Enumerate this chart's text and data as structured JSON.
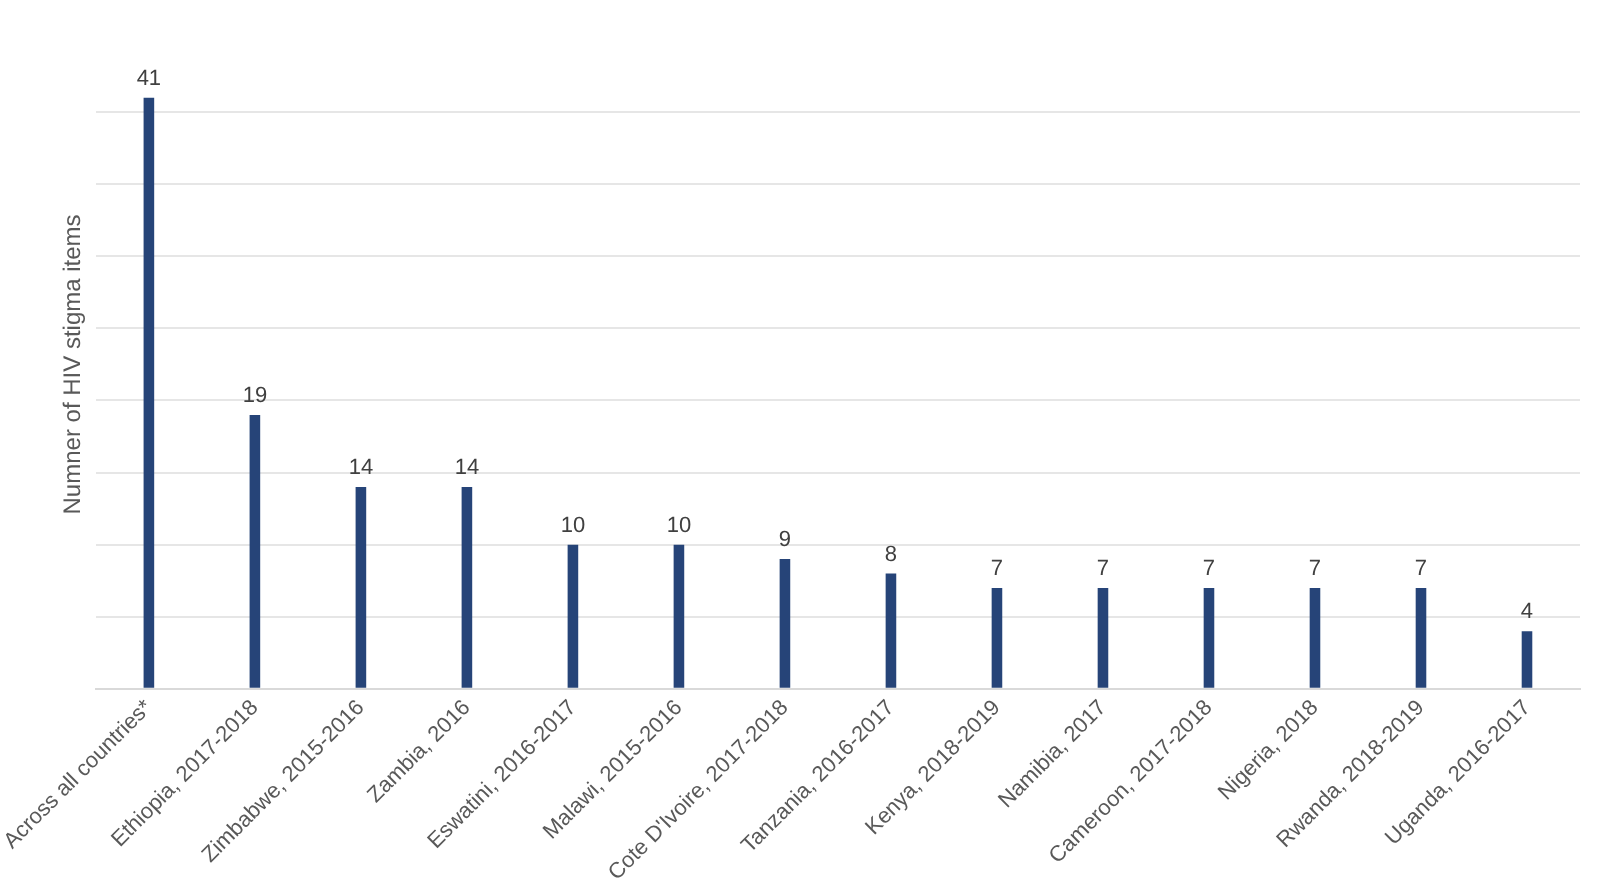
{
  "chart_data": {
    "type": "bar",
    "ylabel": "Numner of HIV stigma items",
    "categories": [
      "Across all countries*",
      "Ethiopia, 2017-2018",
      "Zimbabwe, 2015-2016",
      "Zambia, 2016",
      "Eswatini, 2016-2017",
      "Malawi, 2015-2016",
      "Cote D'Ivoire, 2017-2018",
      "Tanzania, 2016-2017",
      "Kenya, 2018-2019",
      "Namibia, 2017",
      "Cameroon, 2017-2018",
      "Nigeria, 2018",
      "Rwanda, 2018-2019",
      "Uganda, 2016-2017"
    ],
    "values": [
      41,
      19,
      14,
      14,
      10,
      10,
      9,
      8,
      7,
      7,
      7,
      7,
      7,
      4
    ],
    "color": "#264478",
    "data_labels": true,
    "grid": "y",
    "tick_labels": "x",
    "yticks": [
      {
        "value": 0,
        "label": null
      },
      {
        "value": 5,
        "label": null
      },
      {
        "value": 10,
        "label": null
      },
      {
        "value": 15,
        "label": null
      },
      {
        "value": 20,
        "label": null
      },
      {
        "value": 25,
        "label": null
      },
      {
        "value": 30,
        "label": null
      },
      {
        "value": 35,
        "label": null
      },
      {
        "value": 40,
        "label": null
      }
    ]
  }
}
